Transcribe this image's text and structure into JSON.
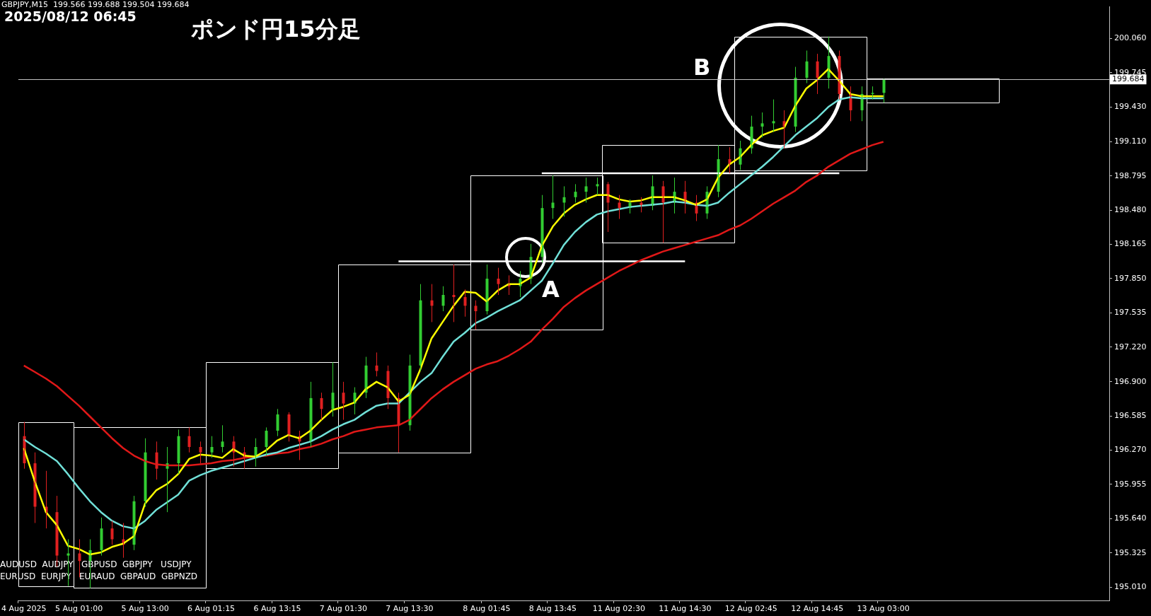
{
  "chart_data": {
    "type": "candlestick",
    "title": "ポンド円15分足",
    "annotations": [
      "GBPJPY,M15  199.566 199.688 199.504 199.684",
      "2025/08/12 06:45",
      "A",
      "B",
      "AUDUSD  AUDJPY   GBPUSD  GBPJPY   USDJPY",
      "EURUSD  EURJPY   EURAUD  GBPAUD  GBPNZD"
    ],
    "categories": [
      "4 Aug 2025",
      null,
      null,
      null,
      null,
      "5 Aug 01:00",
      null,
      null,
      null,
      null,
      null,
      "5 Aug 13:00",
      null,
      null,
      null,
      null,
      null,
      "6 Aug 01:15",
      null,
      null,
      null,
      null,
      null,
      "6 Aug 13:15",
      null,
      null,
      null,
      null,
      null,
      "7 Aug 01:30",
      null,
      null,
      null,
      null,
      null,
      "7 Aug 13:30",
      null,
      null,
      null,
      null,
      null,
      null,
      "8 Aug 01:45",
      null,
      null,
      null,
      null,
      null,
      "8 Aug 13:45",
      null,
      null,
      null,
      null,
      null,
      "11 Aug 02:30",
      null,
      null,
      null,
      null,
      null,
      "11 Aug 14:30",
      null,
      null,
      null,
      null,
      null,
      "12 Aug 02:45",
      null,
      null,
      null,
      null,
      null,
      "12 Aug 14:45",
      null,
      null,
      null,
      null,
      null,
      "13 Aug 03:00",
      null,
      null,
      null,
      null,
      null,
      null,
      null,
      null,
      null,
      null,
      null,
      null,
      null,
      null,
      null,
      null,
      null,
      null,
      null,
      null
    ],
    "ohlc": [
      [
        196.4,
        196.53,
        196.1,
        196.15
      ],
      [
        196.15,
        196.25,
        195.6,
        195.75
      ],
      [
        195.75,
        196.08,
        195.55,
        195.7
      ],
      [
        195.7,
        195.85,
        195.2,
        195.3
      ],
      [
        195.3,
        195.45,
        195.02,
        195.32
      ],
      [
        195.32,
        195.45,
        195.1,
        195.25
      ],
      [
        195.25,
        195.45,
        195.0,
        195.35
      ],
      [
        195.35,
        195.65,
        195.3,
        195.55
      ],
      [
        195.55,
        195.62,
        195.4,
        195.45
      ],
      [
        195.45,
        195.6,
        195.28,
        195.4
      ],
      [
        195.4,
        195.85,
        195.35,
        195.8
      ],
      [
        195.8,
        196.38,
        195.75,
        196.25
      ],
      [
        196.25,
        196.35,
        196.0,
        196.1
      ],
      [
        196.1,
        196.3,
        195.7,
        196.15
      ],
      [
        196.15,
        196.46,
        196.05,
        196.4
      ],
      [
        196.4,
        196.48,
        196.25,
        196.3
      ],
      [
        196.3,
        196.35,
        196.15,
        196.25
      ],
      [
        196.25,
        196.4,
        196.2,
        196.3
      ],
      [
        196.3,
        196.5,
        196.25,
        196.35
      ],
      [
        196.35,
        196.4,
        196.12,
        196.25
      ],
      [
        196.25,
        196.3,
        196.1,
        196.2
      ],
      [
        196.2,
        196.38,
        196.12,
        196.3
      ],
      [
        196.3,
        196.48,
        196.22,
        196.45
      ],
      [
        196.45,
        196.65,
        196.4,
        196.6
      ],
      [
        196.6,
        196.62,
        196.35,
        196.4
      ],
      [
        196.4,
        196.45,
        196.18,
        196.35
      ],
      [
        196.35,
        196.9,
        196.3,
        196.75
      ],
      [
        196.75,
        196.8,
        196.55,
        196.65
      ],
      [
        196.65,
        197.08,
        196.58,
        196.8
      ],
      [
        196.8,
        196.9,
        196.55,
        196.7
      ],
      [
        196.7,
        196.85,
        196.6,
        196.8
      ],
      [
        196.8,
        197.13,
        196.75,
        197.05
      ],
      [
        197.05,
        197.17,
        196.95,
        197.0
      ],
      [
        197.0,
        197.05,
        196.65,
        196.75
      ],
      [
        196.75,
        196.8,
        196.25,
        196.5
      ],
      [
        196.5,
        197.15,
        196.45,
        197.05
      ],
      [
        197.05,
        197.8,
        197.0,
        197.65
      ],
      [
        197.65,
        197.8,
        197.45,
        197.6
      ],
      [
        197.6,
        197.78,
        197.55,
        197.7
      ],
      [
        197.7,
        197.98,
        197.45,
        197.68
      ],
      [
        197.68,
        197.75,
        197.5,
        197.6
      ],
      [
        197.6,
        197.65,
        197.38,
        197.55
      ],
      [
        197.55,
        197.98,
        197.52,
        197.85
      ],
      [
        197.85,
        197.95,
        197.7,
        197.8
      ],
      [
        197.8,
        197.88,
        197.7,
        197.78
      ],
      [
        197.78,
        197.92,
        197.68,
        197.85
      ],
      [
        197.85,
        198.17,
        197.8,
        198.05
      ],
      [
        198.05,
        198.62,
        198.0,
        198.5
      ],
      [
        198.5,
        198.8,
        198.4,
        198.55
      ],
      [
        198.55,
        198.7,
        198.42,
        198.6
      ],
      [
        198.6,
        198.72,
        198.55,
        198.65
      ],
      [
        198.65,
        198.78,
        198.55,
        198.7
      ],
      [
        198.7,
        198.78,
        198.62,
        198.72
      ],
      [
        198.72,
        198.74,
        198.28,
        198.55
      ],
      [
        198.55,
        198.62,
        198.4,
        198.5
      ],
      [
        198.5,
        198.58,
        198.45,
        198.55
      ],
      [
        198.55,
        198.6,
        198.46,
        198.52
      ],
      [
        198.52,
        198.8,
        198.48,
        198.7
      ],
      [
        198.7,
        198.75,
        198.18,
        198.55
      ],
      [
        198.55,
        198.78,
        198.45,
        198.65
      ],
      [
        198.65,
        198.75,
        198.45,
        198.55
      ],
      [
        198.55,
        198.62,
        198.38,
        198.45
      ],
      [
        198.45,
        198.7,
        198.4,
        198.65
      ],
      [
        198.65,
        199.08,
        198.6,
        198.95
      ],
      [
        198.95,
        199.06,
        198.82,
        198.9
      ],
      [
        198.9,
        199.12,
        198.85,
        199.05
      ],
      [
        199.05,
        199.35,
        199.0,
        199.25
      ],
      [
        199.25,
        199.38,
        199.15,
        199.28
      ],
      [
        199.28,
        199.5,
        199.2,
        199.3
      ],
      [
        199.3,
        199.4,
        199.05,
        199.25
      ],
      [
        199.25,
        199.8,
        199.2,
        199.7
      ],
      [
        199.7,
        199.95,
        199.65,
        199.85
      ],
      [
        199.85,
        199.92,
        199.55,
        199.7
      ],
      [
        199.7,
        200.08,
        199.6,
        199.9
      ],
      [
        199.9,
        199.95,
        199.5,
        199.55
      ],
      [
        199.55,
        199.62,
        199.3,
        199.4
      ],
      [
        199.4,
        199.62,
        199.3,
        199.55
      ],
      [
        199.55,
        199.62,
        199.5,
        199.56
      ],
      [
        199.56,
        199.69,
        199.47,
        199.68
      ],
      null,
      null,
      null,
      null,
      null,
      null,
      null,
      null,
      null,
      null,
      null,
      null,
      null,
      null,
      null,
      null,
      null,
      null,
      null,
      null
    ],
    "colors": [
      "#e02020",
      "#e02020",
      "#e02020",
      "#e02020",
      "#32cd32",
      "#e02020",
      "#32cd32",
      "#32cd32",
      "#e02020",
      "#e02020",
      "#32cd32",
      "#32cd32",
      "#e02020",
      "#32cd32",
      "#32cd32",
      "#e02020",
      "#e02020",
      "#32cd32",
      "#32cd32",
      "#e02020",
      "#e02020",
      "#32cd32",
      "#32cd32",
      "#32cd32",
      "#e02020",
      "#e02020",
      "#32cd32",
      "#e02020",
      "#32cd32",
      "#e02020",
      "#32cd32",
      "#32cd32",
      "#e02020",
      "#e02020",
      "#e02020",
      "#32cd32",
      "#32cd32",
      "#e02020",
      "#32cd32",
      "#e02020",
      "#e02020",
      "#e02020",
      "#32cd32",
      "#e02020",
      "#e02020",
      "#32cd32",
      "#32cd32",
      "#32cd32",
      "#32cd32",
      "#32cd32",
      "#32cd32",
      "#32cd32",
      "#32cd32",
      "#e02020",
      "#e02020",
      "#32cd32",
      "#e02020",
      "#32cd32",
      "#e02020",
      "#32cd32",
      "#e02020",
      "#e02020",
      "#32cd32",
      "#32cd32",
      "#e02020",
      "#32cd32",
      "#32cd32",
      "#32cd32",
      "#32cd32",
      "#e02020",
      "#32cd32",
      "#32cd32",
      "#e02020",
      "#32cd32",
      "#e02020",
      "#e02020",
      "#32cd32",
      "#32cd32",
      "#32cd32",
      null,
      null,
      null,
      null,
      null,
      null,
      null,
      null,
      null,
      null,
      null,
      null,
      null,
      null,
      null,
      null,
      null,
      null,
      null,
      null
    ],
    "series": [
      {
        "type": "line",
        "color": "#ffff00",
        "values": [
          196.29,
          195.98,
          195.7,
          195.58,
          195.39,
          195.36,
          195.31,
          195.33,
          195.38,
          195.41,
          195.48,
          195.78,
          195.9,
          195.96,
          196.05,
          196.19,
          196.23,
          196.22,
          196.2,
          196.28,
          196.22,
          196.21,
          196.27,
          196.36,
          196.41,
          196.38,
          196.45,
          196.55,
          196.64,
          196.67,
          196.71,
          196.83,
          196.9,
          196.85,
          196.72,
          196.78,
          197.02,
          197.3,
          197.45,
          197.6,
          197.73,
          197.72,
          197.64,
          197.74,
          197.8,
          197.8,
          197.86,
          198.15,
          198.33,
          198.45,
          198.53,
          198.58,
          198.62,
          198.62,
          198.58,
          198.56,
          198.57,
          198.6,
          198.6,
          198.6,
          198.57,
          198.53,
          198.58,
          198.78,
          198.9,
          198.97,
          199.08,
          199.17,
          199.21,
          199.24,
          199.44,
          199.6,
          199.68,
          199.78,
          199.67,
          199.55,
          199.53,
          199.53,
          199.53,
          null,
          null,
          null,
          null,
          null,
          null,
          null,
          null,
          null,
          null,
          null,
          null,
          null,
          null,
          null,
          null,
          null,
          null,
          null,
          null
        ]
      },
      {
        "type": "line",
        "color": "#70e0d8",
        "values": [
          196.37,
          196.3,
          196.24,
          196.17,
          196.05,
          195.92,
          195.8,
          195.7,
          195.62,
          195.57,
          195.55,
          195.62,
          195.72,
          195.79,
          195.86,
          195.99,
          196.04,
          196.08,
          196.11,
          196.14,
          196.17,
          196.2,
          196.23,
          196.25,
          196.29,
          196.32,
          196.35,
          196.4,
          196.46,
          196.51,
          196.55,
          196.62,
          196.68,
          196.7,
          196.7,
          196.8,
          196.9,
          196.98,
          197.13,
          197.27,
          197.35,
          197.44,
          197.49,
          197.55,
          197.6,
          197.65,
          197.74,
          197.83,
          197.99,
          198.16,
          198.28,
          198.37,
          198.44,
          198.47,
          198.49,
          198.51,
          198.52,
          198.53,
          198.54,
          198.56,
          198.55,
          198.53,
          198.52,
          198.55,
          198.64,
          198.72,
          198.8,
          198.88,
          198.97,
          199.07,
          199.17,
          199.25,
          199.33,
          199.43,
          199.5,
          199.52,
          199.51,
          199.51,
          199.51,
          null,
          null,
          null,
          null,
          null,
          null,
          null,
          null,
          null,
          null,
          null,
          null,
          null,
          null,
          null,
          null,
          null,
          null,
          null,
          null
        ]
      },
      {
        "type": "line",
        "color": "#e01818",
        "values": [
          197.05,
          196.99,
          196.93,
          196.86,
          196.77,
          196.68,
          196.58,
          196.48,
          196.38,
          196.29,
          196.22,
          196.17,
          196.14,
          196.13,
          196.13,
          196.13,
          196.14,
          196.15,
          196.17,
          196.18,
          196.2,
          196.21,
          196.22,
          196.24,
          196.25,
          196.28,
          196.3,
          196.33,
          196.37,
          196.4,
          196.44,
          196.46,
          196.48,
          196.49,
          196.5,
          196.55,
          196.65,
          196.75,
          196.83,
          196.9,
          196.96,
          197.02,
          197.06,
          197.09,
          197.14,
          197.2,
          197.27,
          197.38,
          197.48,
          197.59,
          197.67,
          197.74,
          197.8,
          197.86,
          197.92,
          197.97,
          198.02,
          198.06,
          198.1,
          198.13,
          198.16,
          198.19,
          198.22,
          198.25,
          198.3,
          198.34,
          198.4,
          198.47,
          198.54,
          198.6,
          198.66,
          198.74,
          198.8,
          198.88,
          198.94,
          199.0,
          199.04,
          199.08,
          199.11,
          null,
          null,
          null,
          null,
          null,
          null,
          null,
          null,
          null,
          null,
          null,
          null,
          null,
          null,
          null,
          null,
          null,
          null,
          null,
          null
        ]
      },
      {
        "type": "line",
        "color": "#ffffff",
        "values": [
          null,
          null,
          null,
          null,
          null,
          null,
          null,
          null,
          null,
          null,
          null,
          null,
          null,
          null,
          null,
          null,
          null,
          null,
          null,
          null,
          null,
          null,
          null,
          null,
          null,
          null,
          null,
          null,
          null,
          null,
          null,
          null,
          null,
          null,
          198.01,
          null,
          null,
          null,
          null,
          null,
          null,
          null,
          null,
          null,
          null,
          null,
          null,
          null,
          null,
          null,
          null,
          null,
          null,
          null,
          null,
          null,
          null,
          null,
          null,
          null,
          198.01,
          null,
          null,
          null,
          null,
          null,
          null,
          null,
          null,
          null,
          null,
          null,
          null,
          null,
          null,
          null,
          null,
          null,
          null,
          null,
          null,
          null,
          null,
          null,
          null,
          null,
          null,
          null,
          null,
          null,
          null,
          null,
          null,
          null,
          null,
          null,
          null,
          null,
          null
        ]
      },
      {
        "type": "line",
        "color": "#ffffff",
        "values": [
          null,
          null,
          null,
          null,
          null,
          null,
          null,
          null,
          null,
          null,
          null,
          null,
          null,
          null,
          null,
          null,
          null,
          null,
          null,
          null,
          null,
          null,
          null,
          null,
          null,
          null,
          null,
          null,
          null,
          null,
          null,
          null,
          null,
          null,
          null,
          null,
          null,
          null,
          null,
          null,
          null,
          null,
          null,
          null,
          null,
          null,
          null,
          198.82,
          null,
          null,
          null,
          null,
          null,
          null,
          null,
          null,
          null,
          null,
          null,
          null,
          null,
          null,
          null,
          null,
          null,
          null,
          null,
          null,
          null,
          null,
          null,
          null,
          null,
          null,
          198.82,
          null,
          null,
          null,
          null,
          null,
          null,
          null,
          null,
          null,
          null,
          null,
          null,
          null,
          null,
          null,
          null,
          null,
          null,
          null,
          null,
          null,
          null,
          null,
          null
        ]
      }
    ],
    "ylim": [
      194.887,
      200.353
    ],
    "yticks": [
      {
        "value": 195.01,
        "label": "195.010"
      },
      {
        "value": 195.325,
        "label": "195.325"
      },
      {
        "value": 195.64,
        "label": "195.640"
      },
      {
        "value": 195.955,
        "label": "195.955"
      },
      {
        "value": 196.27,
        "label": "196.270"
      },
      {
        "value": 196.585,
        "label": "196.585"
      },
      {
        "value": 196.9,
        "label": "196.900"
      },
      {
        "value": 197.22,
        "label": "197.220"
      },
      {
        "value": 197.535,
        "label": "197.535"
      },
      {
        "value": 197.85,
        "label": "197.850"
      },
      {
        "value": 198.165,
        "label": "198.165"
      },
      {
        "value": 198.48,
        "label": "198.480"
      },
      {
        "value": 198.795,
        "label": "198.795"
      },
      {
        "value": 199.11,
        "label": "199.110"
      },
      {
        "value": 199.43,
        "label": "199.430"
      },
      {
        "value": 199.745,
        "label": "199.745"
      },
      {
        "value": 200.06,
        "label": "200.060"
      }
    ],
    "ref_lines": [
      {
        "axis": "y",
        "value": 199.684,
        "label": "199.684",
        "color": "#c0c0c0"
      }
    ],
    "grid": false,
    "legend": false
  }
}
